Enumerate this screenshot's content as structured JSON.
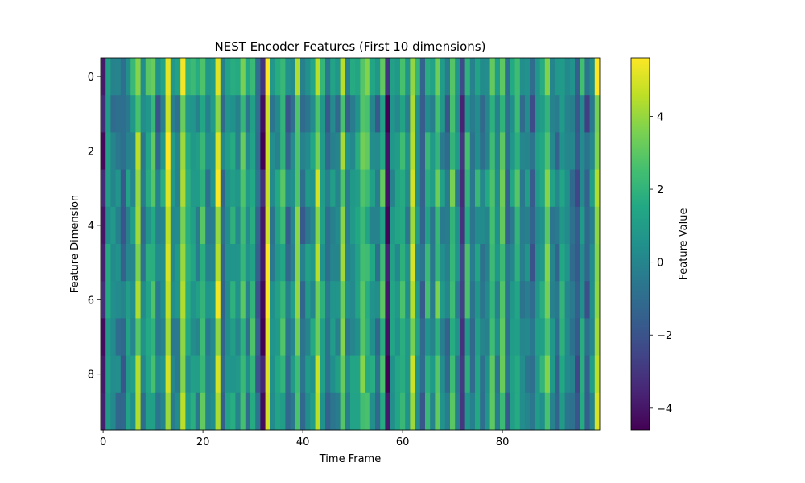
{
  "chart_data": {
    "type": "heatmap",
    "title": "NEST Encoder Features (First 10 dimensions)",
    "xlabel": "Time Frame",
    "ylabel": "Feature Dimension",
    "colorbar_label": "Feature Value",
    "colormap": "viridis",
    "n_rows": 10,
    "n_cols": 100,
    "xlim": [
      -0.5,
      99.5
    ],
    "ylim": [
      9.5,
      -0.5
    ],
    "vmin": -4.6,
    "vmax": 5.6,
    "x_ticks": [
      0,
      20,
      40,
      60,
      80
    ],
    "y_ticks": [
      0,
      2,
      4,
      6,
      8
    ],
    "colorbar_ticks": [
      -4,
      -2,
      0,
      2,
      4
    ],
    "colorbar_tick_labels": [
      "−4",
      "−2",
      "0",
      "2",
      "4"
    ],
    "column_profile": [
      -3.6,
      1.0,
      0.2,
      -0.2,
      -1.0,
      0.6,
      0.8,
      3.8,
      0.0,
      1.6,
      2.2,
      -0.6,
      0.8,
      5.0,
      0.2,
      0.4,
      4.0,
      1.0,
      1.2,
      0.4,
      2.6,
      -0.2,
      0.8,
      4.6,
      -0.6,
      1.0,
      1.4,
      0.2,
      2.6,
      0.0,
      2.0,
      -1.2,
      -4.2,
      5.2,
      0.0,
      0.8,
      2.0,
      -0.6,
      0.2,
      3.2,
      -1.0,
      0.4,
      0.8,
      4.0,
      1.2,
      -0.8,
      0.4,
      0.2,
      3.6,
      -0.2,
      0.6,
      1.0,
      3.2,
      2.4,
      0.8,
      -0.4,
      2.2,
      -4.0,
      0.6,
      1.0,
      2.4,
      0.4,
      4.2,
      0.8,
      -1.2,
      1.6,
      0.2,
      2.8,
      0.4,
      -0.8,
      2.6,
      0.0,
      -2.6,
      1.8,
      -0.4,
      1.2,
      -0.2,
      0.6,
      2.4,
      0.0,
      3.0,
      -0.8,
      0.6,
      2.0,
      -0.2,
      0.2,
      -1.2,
      0.8,
      1.4,
      3.4,
      0.2,
      -0.6,
      1.2,
      0.4,
      -0.6,
      -2.0,
      1.0,
      -1.4,
      0.2,
      4.4
    ],
    "row_offsets": [
      0.6,
      -0.5,
      0.0,
      0.1,
      -0.2,
      0.0,
      0.1,
      -0.1,
      0.0,
      -0.2
    ],
    "cell_variation": 0.45
  }
}
